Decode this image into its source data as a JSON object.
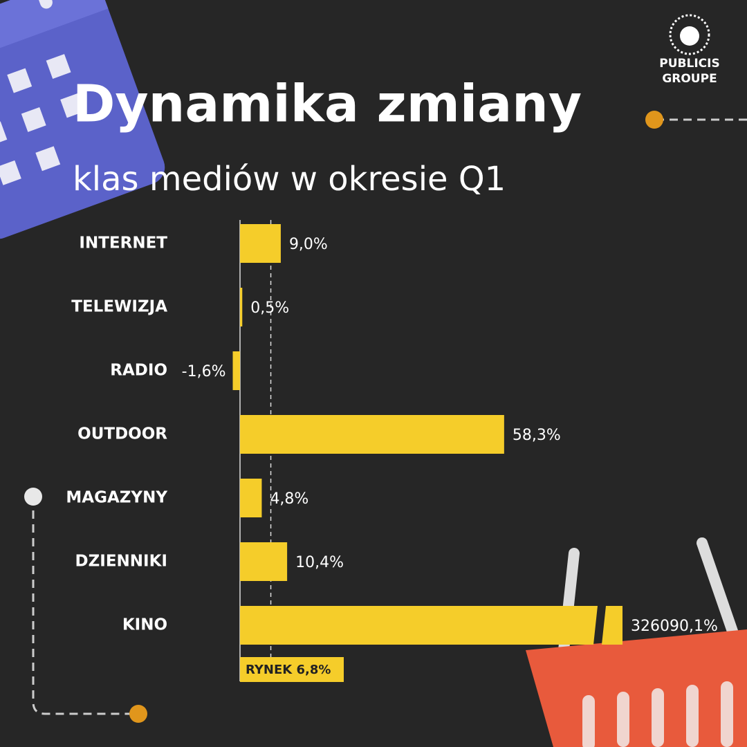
{
  "chart_data": {
    "type": "bar",
    "orientation": "horizontal",
    "title": "Dynamika zmiany",
    "subtitle": "klas mediów w okresie Q1",
    "categories": [
      "INTERNET",
      "TELEWIZJA",
      "RADIO",
      "OUTDOOR",
      "MAGAZYNY",
      "DZIENNIKI",
      "KINO"
    ],
    "values": [
      9.0,
      0.5,
      -1.6,
      58.3,
      4.8,
      10.4,
      326090.1
    ],
    "value_labels": [
      "9,0%",
      "0,5%",
      "-1,6%",
      "58,3%",
      "4,8%",
      "10,4%",
      "326090,1%"
    ],
    "color": "#f5cd2a",
    "reference_value": 6.8,
    "reference_label": "RYNEK 6,8%",
    "logo": [
      "PUBLICIS",
      "GROUPE"
    ]
  }
}
